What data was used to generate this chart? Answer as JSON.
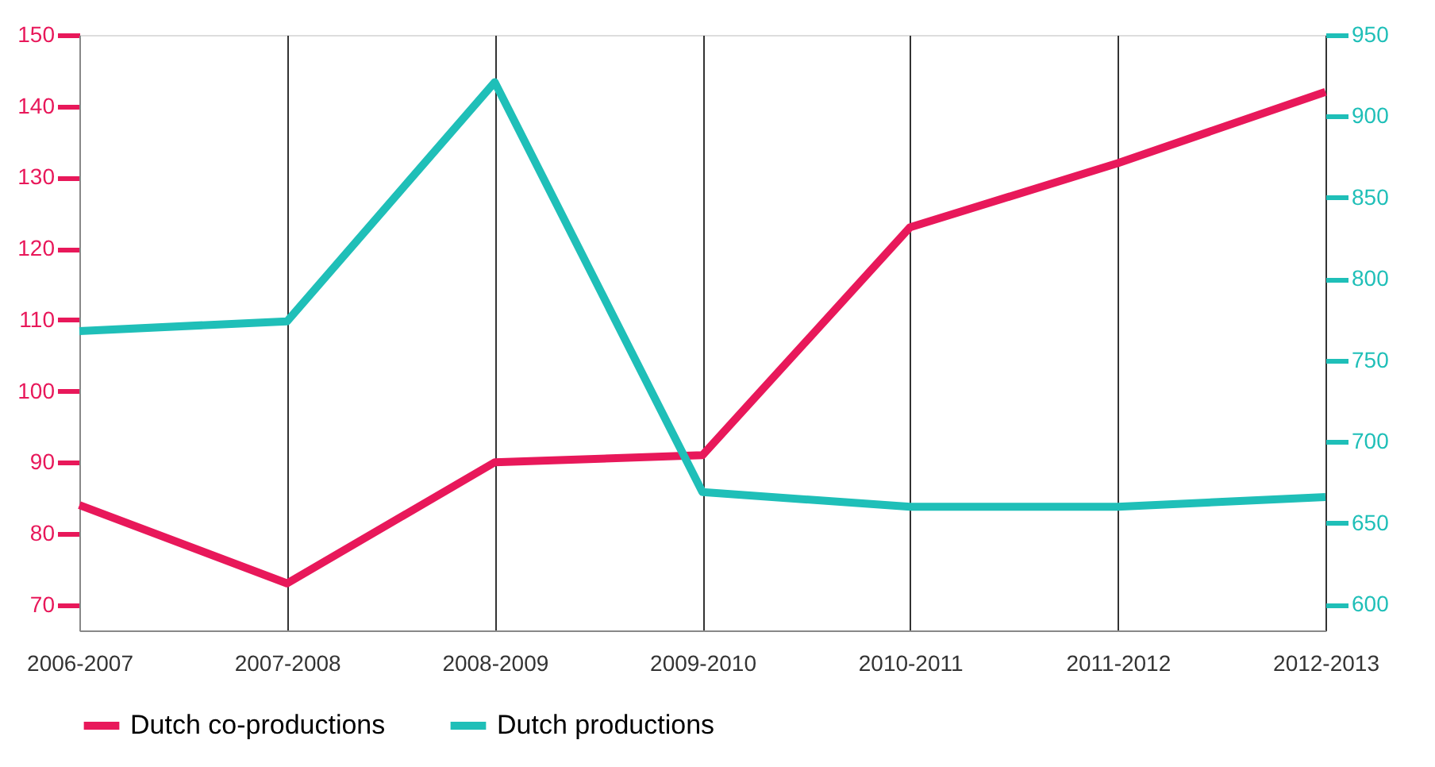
{
  "chart_data": {
    "type": "line",
    "categories": [
      "2006-2007",
      "2007-2008",
      "2008-2009",
      "2009-2010",
      "2010-2011",
      "2011-2012",
      "2012-2013"
    ],
    "series": [
      {
        "name": "Dutch co-productions",
        "color": "#e8185a",
        "values": [
          84,
          73,
          90,
          91,
          123,
          132,
          142
        ]
      },
      {
        "name": "Dutch productions",
        "color": "#1fbfb8",
        "axis": "y2",
        "values": [
          768,
          774,
          921,
          669,
          660,
          660,
          666
        ]
      }
    ],
    "ylim": [
      66.4,
      150
    ],
    "yticks": [
      70,
      80,
      90,
      100,
      110,
      120,
      130,
      140,
      150
    ],
    "y2lim": [
      584,
      950
    ],
    "y2ticks": [
      600,
      650,
      700,
      750,
      800,
      850,
      900,
      950
    ],
    "grid": "x",
    "legend": "bottom",
    "marker": "none",
    "line_style": "solid"
  }
}
